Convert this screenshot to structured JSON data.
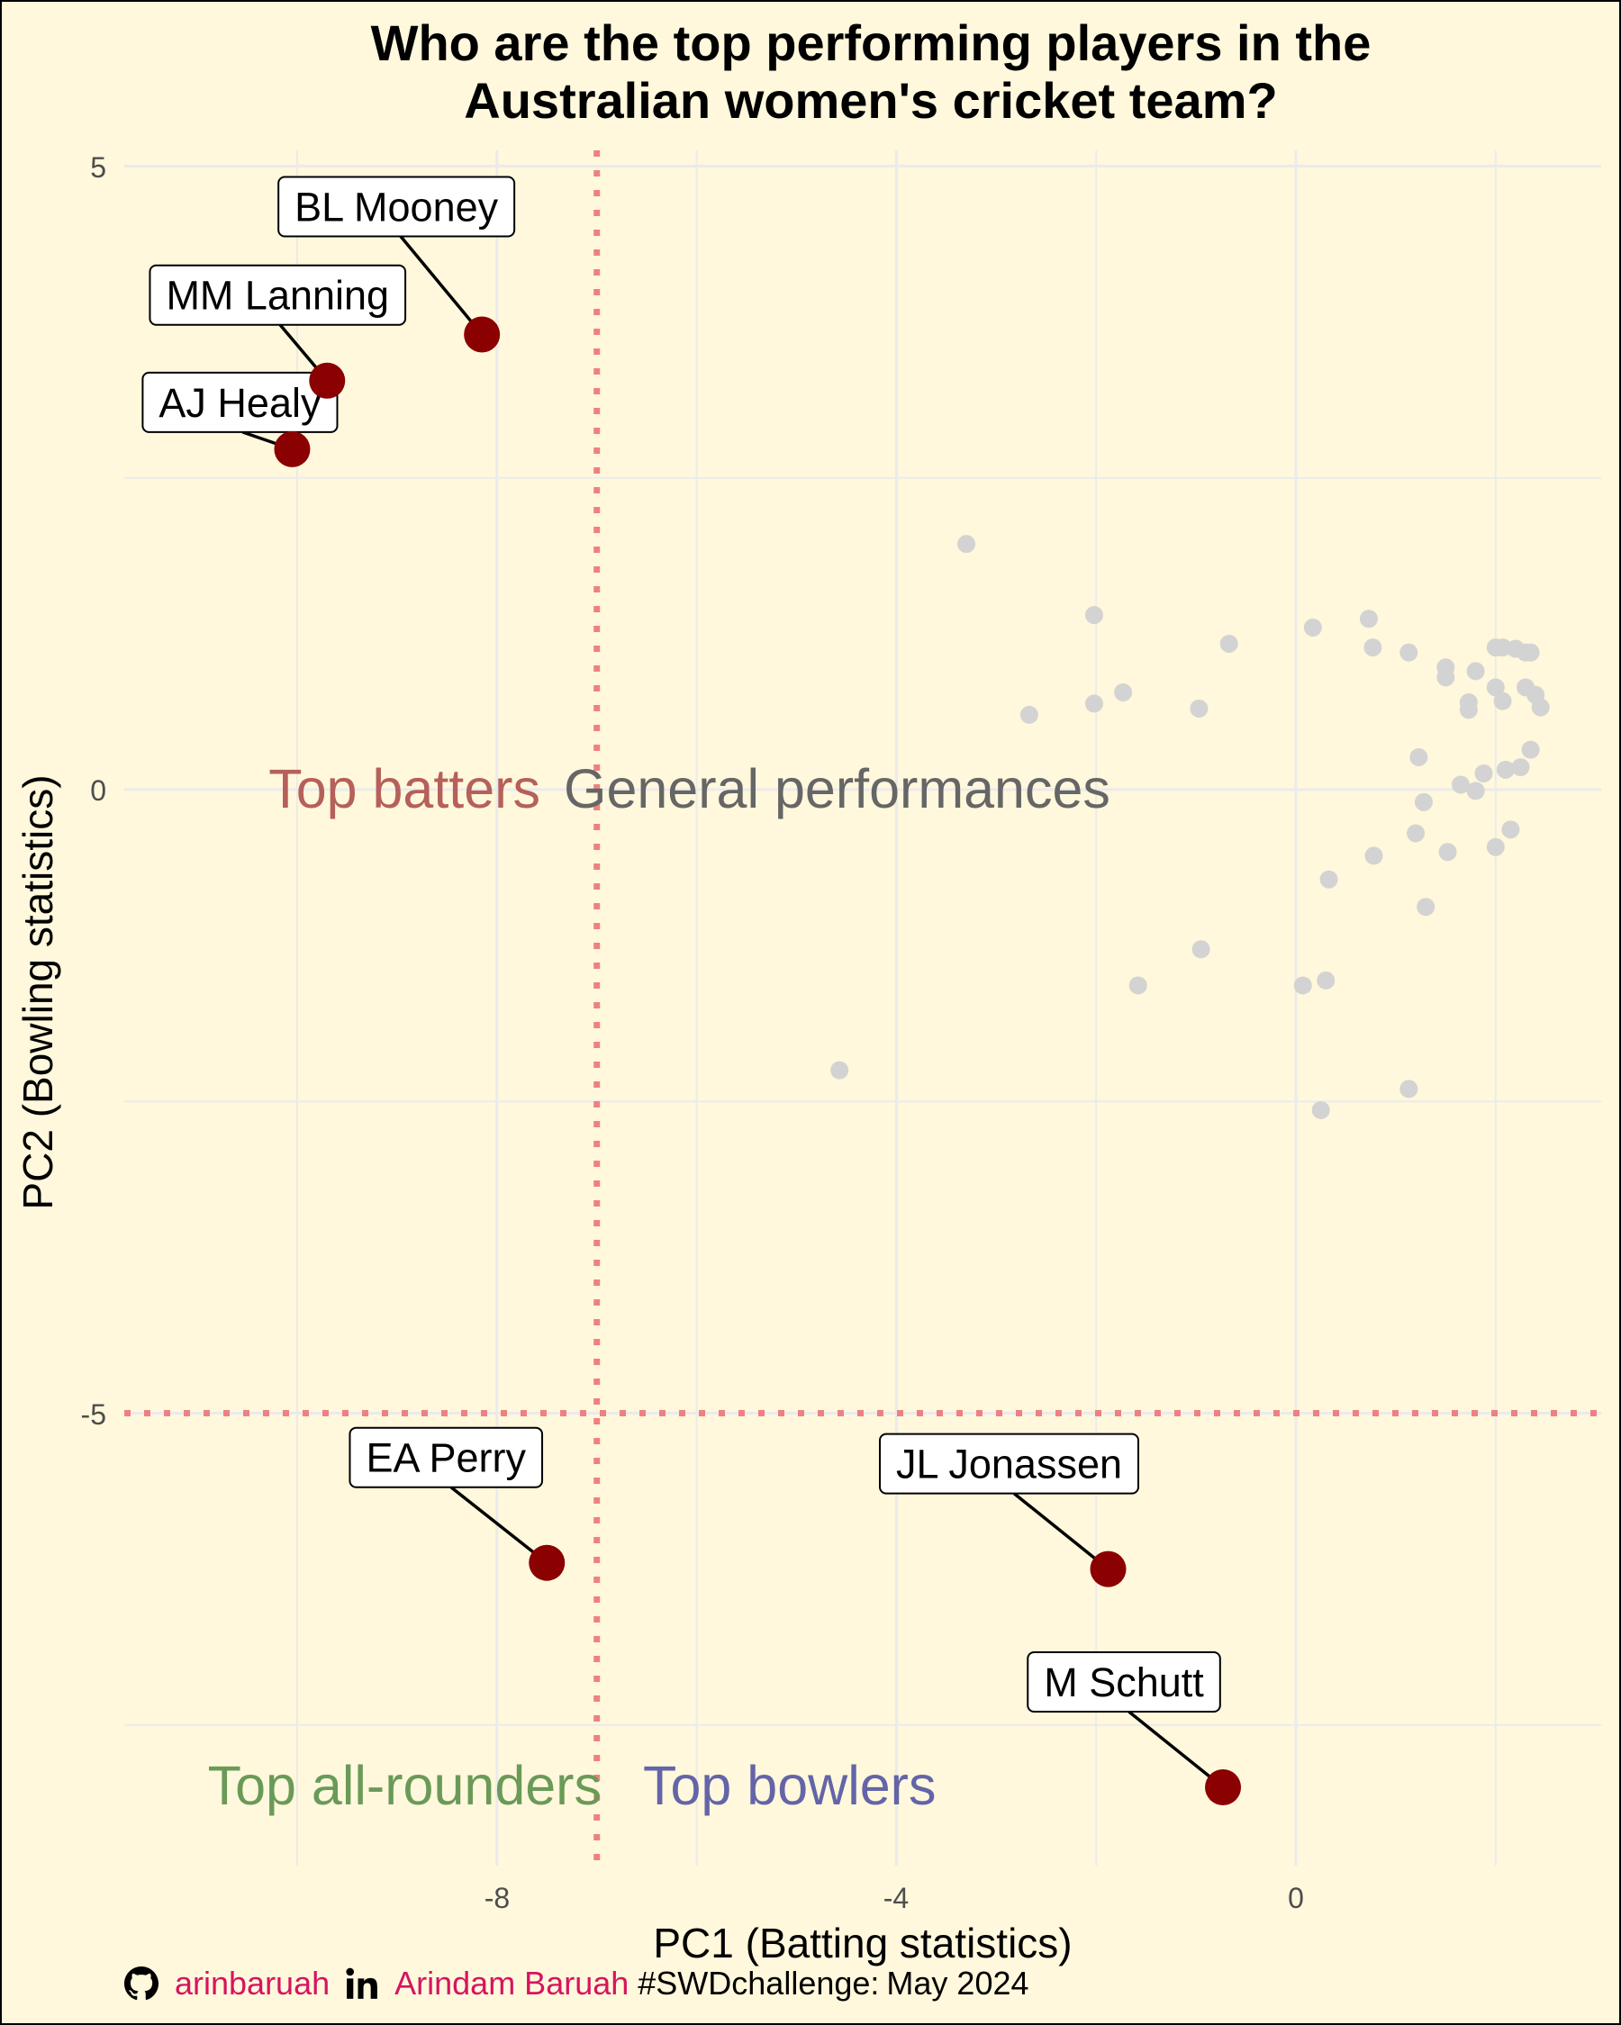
{
  "chart_data": {
    "type": "scatter",
    "title_lines": [
      "Who are the top performing players in the",
      "Australian women's cricket team?"
    ],
    "xlabel": "PC1 (Batting statistics)",
    "ylabel": "PC2 (Bowling statistics)",
    "xlim": [
      -10.05,
      3.05
    ],
    "ylim": [
      -8.5,
      5.1
    ],
    "x_ticks": [
      -8,
      -4,
      0
    ],
    "y_ticks": [
      5,
      0,
      -5
    ],
    "x_tick_labels": [
      "-8",
      "-4",
      "0"
    ],
    "y_tick_labels": [
      "5",
      "0",
      "-5"
    ],
    "grid": true,
    "reference_lines": {
      "x": -7,
      "y": -5,
      "style": "dotted",
      "color": "#f08080"
    },
    "quadrant_labels": [
      {
        "text": "Top batters",
        "color": "#b5605a"
      },
      {
        "text": "General performances",
        "color": "#666666"
      },
      {
        "text": "Top all-rounders",
        "color": "#6a9a58"
      },
      {
        "text": "Top bowlers",
        "color": "#6464a8"
      }
    ],
    "highlight_color": "#8b0000",
    "other_color": "#d3d3d3",
    "highlighted": [
      {
        "name": "BL Mooney",
        "x": -8.15,
        "y": 3.65
      },
      {
        "name": "MM Lanning",
        "x": -9.7,
        "y": 3.28
      },
      {
        "name": "AJ Healy",
        "x": -10.05,
        "y": 2.73
      },
      {
        "name": "EA Perry",
        "x": -7.5,
        "y": -6.2
      },
      {
        "name": "JL Jonassen",
        "x": -1.88,
        "y": -6.25
      },
      {
        "name": "M Schutt",
        "x": -0.73,
        "y": -8.0
      }
    ],
    "others": [
      {
        "x": -3.3,
        "y": 1.97
      },
      {
        "x": -4.57,
        "y": -2.25
      },
      {
        "x": -2.67,
        "y": 0.6
      },
      {
        "x": -2.02,
        "y": 1.4
      },
      {
        "x": -2.02,
        "y": 0.69
      },
      {
        "x": -1.73,
        "y": 0.78
      },
      {
        "x": -1.58,
        "y": -1.57
      },
      {
        "x": -0.97,
        "y": 0.65
      },
      {
        "x": -0.95,
        "y": -1.28
      },
      {
        "x": -0.67,
        "y": 1.17
      },
      {
        "x": 0.07,
        "y": -1.57
      },
      {
        "x": 0.17,
        "y": 1.3
      },
      {
        "x": 0.3,
        "y": -1.53
      },
      {
        "x": 0.25,
        "y": -2.57
      },
      {
        "x": 0.33,
        "y": -0.72
      },
      {
        "x": 0.73,
        "y": 1.37
      },
      {
        "x": 0.77,
        "y": 1.14
      },
      {
        "x": 0.78,
        "y": -0.53
      },
      {
        "x": 1.13,
        "y": 1.1
      },
      {
        "x": 1.13,
        "y": -2.4
      },
      {
        "x": 1.23,
        "y": 0.26
      },
      {
        "x": 1.2,
        "y": -0.35
      },
      {
        "x": 1.28,
        "y": -0.1
      },
      {
        "x": 1.3,
        "y": -0.94
      },
      {
        "x": 1.5,
        "y": 0.98
      },
      {
        "x": 1.5,
        "y": 0.9
      },
      {
        "x": 1.52,
        "y": -0.5
      },
      {
        "x": 1.65,
        "y": 0.04
      },
      {
        "x": 1.73,
        "y": 0.7
      },
      {
        "x": 1.73,
        "y": 0.64
      },
      {
        "x": 1.8,
        "y": 0.95
      },
      {
        "x": 1.8,
        "y": -0.01
      },
      {
        "x": 1.88,
        "y": 0.13
      },
      {
        "x": 2.0,
        "y": 1.14
      },
      {
        "x": 2.07,
        "y": 1.14
      },
      {
        "x": 2.0,
        "y": 0.82
      },
      {
        "x": 2.07,
        "y": 0.71
      },
      {
        "x": 2.15,
        "y": -0.32
      },
      {
        "x": 2.0,
        "y": -0.46
      },
      {
        "x": 2.1,
        "y": 0.16
      },
      {
        "x": 2.2,
        "y": 1.13
      },
      {
        "x": 2.3,
        "y": 1.1
      },
      {
        "x": 2.3,
        "y": 0.82
      },
      {
        "x": 2.35,
        "y": 0.32
      },
      {
        "x": 2.4,
        "y": 0.76
      },
      {
        "x": 2.45,
        "y": 0.66
      },
      {
        "x": 2.25,
        "y": 0.18
      },
      {
        "x": 2.35,
        "y": 1.1
      }
    ]
  },
  "caption": {
    "github_icon": "github-icon",
    "github_handle": "arinbaruah",
    "linkedin_icon": "linkedin-icon",
    "linkedin_name": "Arindam Baruah",
    "hashtag": "#SWDchallenge:",
    "date": "May 2024"
  }
}
